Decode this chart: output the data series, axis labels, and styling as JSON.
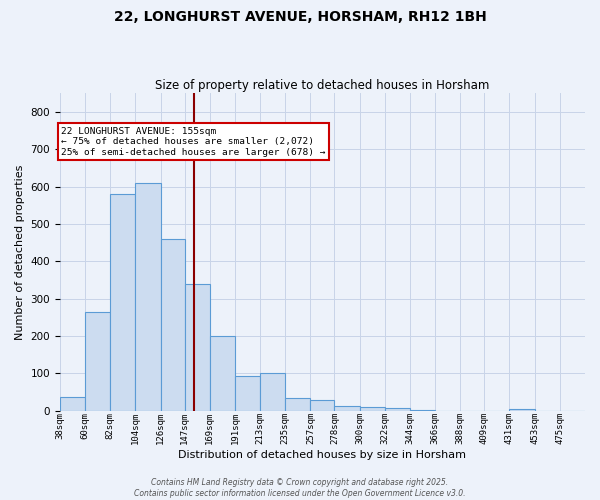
{
  "title": "22, LONGHURST AVENUE, HORSHAM, RH12 1BH",
  "subtitle": "Size of property relative to detached houses in Horsham",
  "xlabel": "Distribution of detached houses by size in Horsham",
  "ylabel": "Number of detached properties",
  "bar_heights": [
    38,
    265,
    580,
    610,
    460,
    340,
    200,
    93,
    100,
    35,
    30,
    12,
    10,
    8,
    2,
    0,
    0,
    0,
    5,
    0,
    0
  ],
  "bin_edges": [
    38,
    60,
    82,
    104,
    126,
    147,
    169,
    191,
    213,
    235,
    257,
    278,
    300,
    322,
    344,
    366,
    388,
    409,
    431,
    453,
    475,
    497
  ],
  "x_tick_labels": [
    "38sqm",
    "60sqm",
    "82sqm",
    "104sqm",
    "126sqm",
    "147sqm",
    "169sqm",
    "191sqm",
    "213sqm",
    "235sqm",
    "257sqm",
    "278sqm",
    "300sqm",
    "322sqm",
    "344sqm",
    "366sqm",
    "388sqm",
    "409sqm",
    "431sqm",
    "453sqm",
    "475sqm"
  ],
  "bar_facecolor": "#ccdcf0",
  "bar_edgecolor": "#5b9bd5",
  "vline_x": 155,
  "vline_color": "#8b0000",
  "ylim": [
    0,
    850
  ],
  "yticks": [
    0,
    100,
    200,
    300,
    400,
    500,
    600,
    700,
    800
  ],
  "annotation_title": "22 LONGHURST AVENUE: 155sqm",
  "annotation_line1": "← 75% of detached houses are smaller (2,072)",
  "annotation_line2": "25% of semi-detached houses are larger (678) →",
  "annotation_box_color": "#ffffff",
  "annotation_box_edgecolor": "#cc0000",
  "grid_color": "#c8d4e8",
  "background_color": "#edf2fa",
  "footer1": "Contains HM Land Registry data © Crown copyright and database right 2025.",
  "footer2": "Contains public sector information licensed under the Open Government Licence v3.0."
}
